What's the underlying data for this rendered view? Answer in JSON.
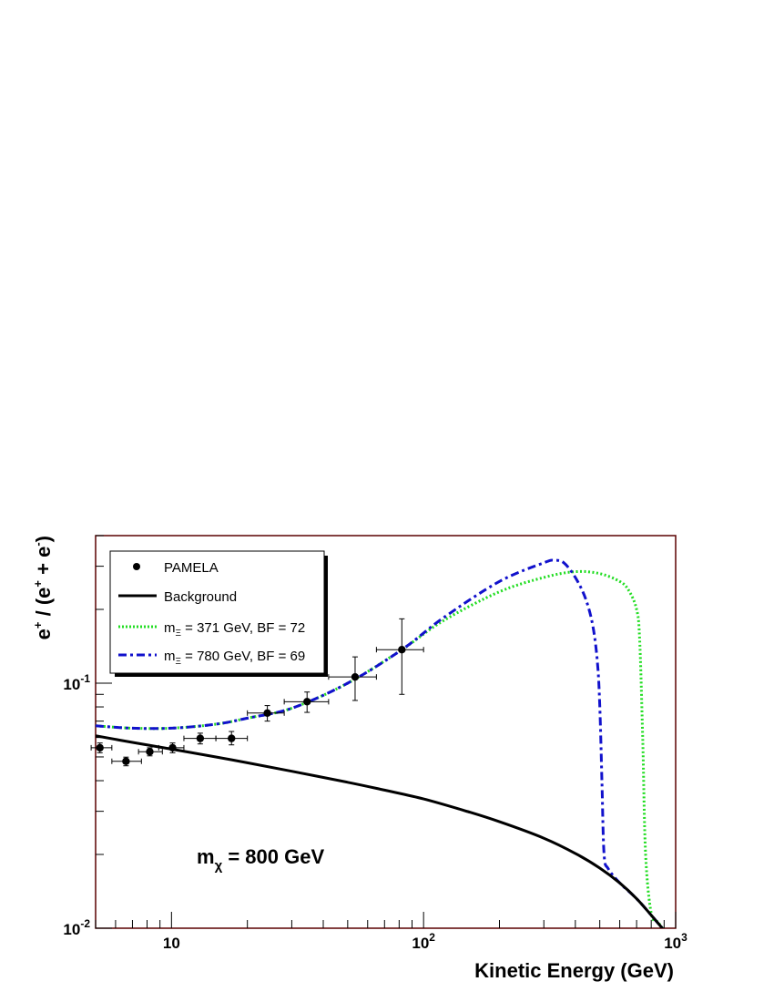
{
  "chart_data": {
    "type": "line",
    "xscale": "log",
    "yscale": "log",
    "xlim": [
      5,
      1000
    ],
    "ylim": [
      0.01,
      0.4
    ],
    "xlabel": "Kinetic Energy (GeV)",
    "ylabel": "e+ / (e+ + e-)",
    "x_ticks": [
      {
        "value": 10,
        "base": "10",
        "exp": ""
      },
      {
        "value": 100,
        "base": "10",
        "exp": "2"
      },
      {
        "value": 1000,
        "base": "10",
        "exp": "3"
      }
    ],
    "y_ticks": [
      {
        "value": 0.01,
        "base": "10",
        "exp": "-2"
      },
      {
        "value": 0.1,
        "base": "10",
        "exp": "-1"
      }
    ],
    "annotation": {
      "main": "m",
      "sub": "χ",
      "rest": " = 800 GeV"
    },
    "legend": {
      "placement": "top-left",
      "entries": [
        {
          "label": "PAMELA",
          "style": "marker"
        },
        {
          "label": "Background",
          "style": "solid"
        },
        {
          "label_main": "m",
          "label_sub": "Ξ",
          "label_rest": " = 371 GeV, BF = 72",
          "style": "dotted",
          "color": "#22dd22"
        },
        {
          "label_main": "m",
          "label_sub": "Ξ",
          "label_rest": " = 780 GeV, BF = 69",
          "style": "dashdot",
          "color": "#1111cc"
        }
      ]
    },
    "series": [
      {
        "name": "PAMELA",
        "type": "scatter",
        "color": "#000000",
        "points": [
          {
            "x": 5.2,
            "xlo": 4.8,
            "xhi": 5.8,
            "y": 0.0545,
            "ylo": 0.052,
            "yhi": 0.057
          },
          {
            "x": 6.6,
            "xlo": 5.8,
            "xhi": 7.6,
            "y": 0.048,
            "ylo": 0.046,
            "yhi": 0.0499
          },
          {
            "x": 8.2,
            "xlo": 7.4,
            "xhi": 9.2,
            "y": 0.0525,
            "ylo": 0.0505,
            "yhi": 0.0545
          },
          {
            "x": 10.1,
            "xlo": 8.9,
            "xhi": 11.2,
            "y": 0.0545,
            "ylo": 0.052,
            "yhi": 0.057
          },
          {
            "x": 13.0,
            "xlo": 11.2,
            "xhi": 15.0,
            "y": 0.0595,
            "ylo": 0.0565,
            "yhi": 0.0625
          },
          {
            "x": 17.3,
            "xlo": 15.0,
            "xhi": 20.0,
            "y": 0.0595,
            "ylo": 0.056,
            "yhi": 0.0635
          },
          {
            "x": 24.0,
            "xlo": 20.0,
            "xhi": 28.0,
            "y": 0.0755,
            "ylo": 0.07,
            "yhi": 0.081
          },
          {
            "x": 34.5,
            "xlo": 28.0,
            "xhi": 42.0,
            "y": 0.084,
            "ylo": 0.076,
            "yhi": 0.092
          },
          {
            "x": 53.5,
            "xlo": 42.0,
            "xhi": 65.0,
            "y": 0.106,
            "ylo": 0.085,
            "yhi": 0.128
          },
          {
            "x": 82.0,
            "xlo": 65.0,
            "xhi": 100.0,
            "y": 0.137,
            "ylo": 0.09,
            "yhi": 0.183
          }
        ]
      },
      {
        "name": "Background",
        "type": "line",
        "color": "#000000",
        "x": [
          5,
          7,
          10,
          15,
          20,
          30,
          50,
          70,
          100,
          150,
          200,
          300,
          400,
          500,
          600,
          700,
          800,
          900
        ],
        "y": [
          0.061,
          0.0573,
          0.0538,
          0.05,
          0.0473,
          0.0437,
          0.0394,
          0.0366,
          0.0337,
          0.0299,
          0.0272,
          0.0233,
          0.0202,
          0.0176,
          0.0153,
          0.0132,
          0.0113,
          0.0098
        ]
      },
      {
        "name": "371 GeV, BF = 72",
        "type": "line",
        "style": "dotted",
        "color": "#22dd22",
        "x": [
          5,
          7,
          10,
          15,
          20,
          30,
          50,
          82,
          120,
          200,
          300,
          400,
          500,
          600,
          650,
          700,
          720,
          740,
          760,
          800,
          850,
          900
        ],
        "y": [
          0.067,
          0.0655,
          0.0655,
          0.068,
          0.072,
          0.079,
          0.1,
          0.137,
          0.18,
          0.236,
          0.27,
          0.285,
          0.28,
          0.26,
          0.24,
          0.2,
          0.15,
          0.06,
          0.02,
          0.0115,
          0.0106,
          0.0098
        ]
      },
      {
        "name": "780 GeV, BF = 69",
        "type": "line",
        "style": "dashdot",
        "color": "#1111cc",
        "x": [
          5,
          7,
          10,
          15,
          20,
          30,
          50,
          82,
          120,
          200,
          300,
          330,
          360,
          400,
          440,
          470,
          490,
          500,
          510,
          520,
          540,
          600,
          700,
          800,
          900
        ],
        "y": [
          0.067,
          0.0655,
          0.0655,
          0.068,
          0.072,
          0.079,
          0.1,
          0.137,
          0.185,
          0.26,
          0.31,
          0.317,
          0.31,
          0.27,
          0.22,
          0.17,
          0.12,
          0.08,
          0.04,
          0.02,
          0.0175,
          0.0153,
          0.0132,
          0.0113,
          0.0098
        ]
      }
    ]
  }
}
